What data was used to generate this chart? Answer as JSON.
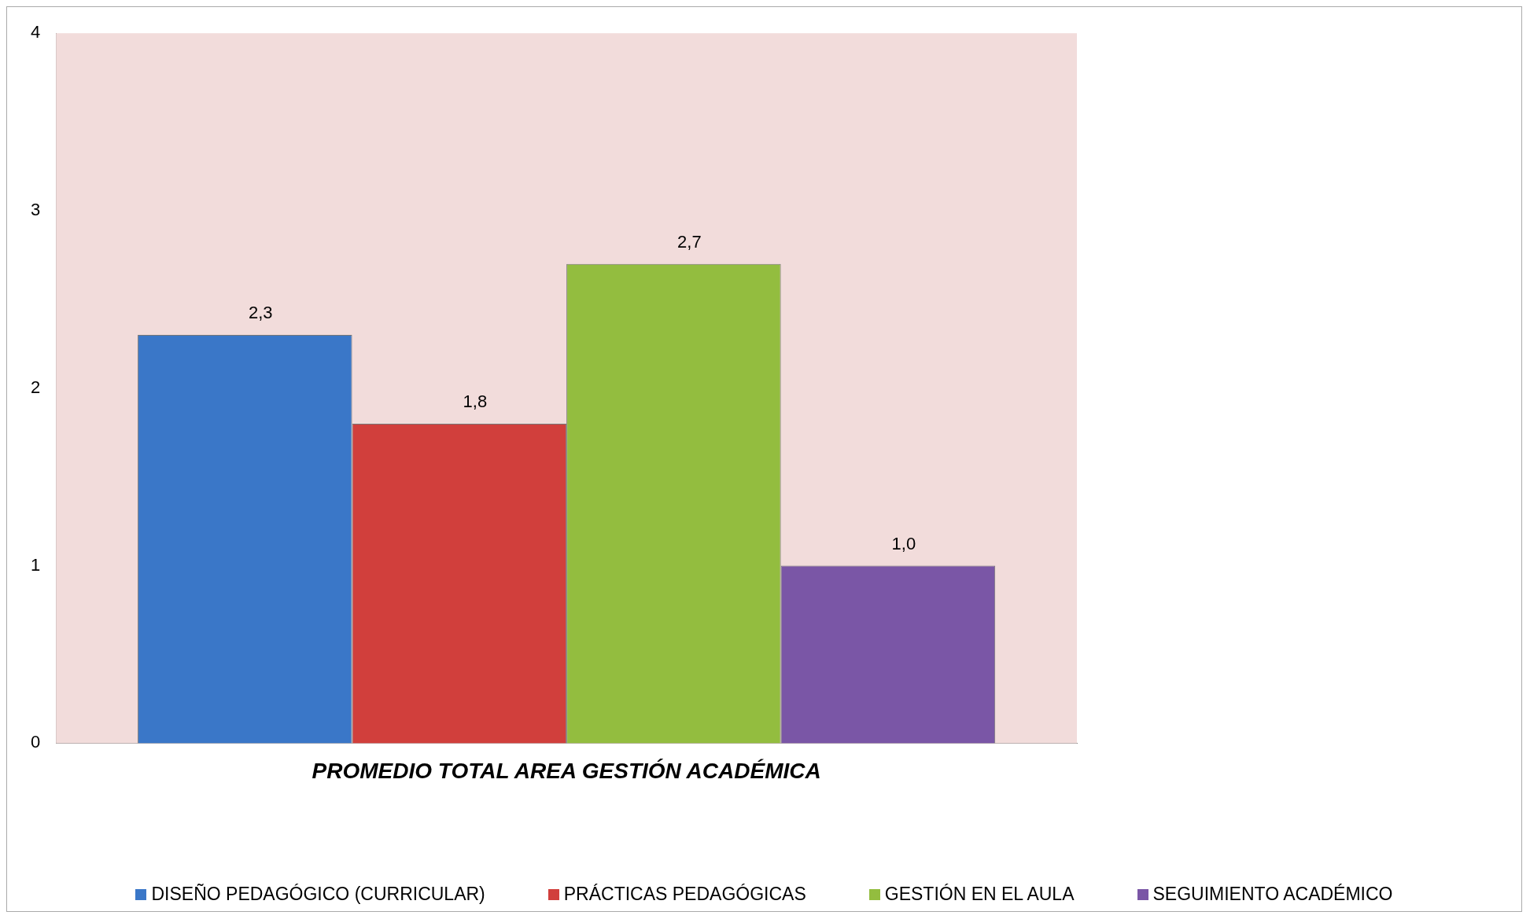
{
  "chart_data": {
    "type": "bar",
    "categories": [
      "PROMEDIO TOTAL AREA GESTIÓN ACADÉMICA"
    ],
    "series": [
      {
        "name": "DISEÑO PEDAGÓGICO (CURRICULAR)",
        "color": "#3a77c8",
        "values": [
          2.3
        ],
        "value_labels": [
          "2,3"
        ]
      },
      {
        "name": "PRÁCTICAS PEDAGÓGICAS",
        "color": "#d13f3c",
        "values": [
          1.8
        ],
        "value_labels": [
          "1,8"
        ]
      },
      {
        "name": "GESTIÓN EN EL AULA",
        "color": "#93bd3f",
        "values": [
          2.7
        ],
        "value_labels": [
          "2,7"
        ]
      },
      {
        "name": "SEGUIMIENTO ACADÉMICO",
        "color": "#7a56a6",
        "values": [
          1.0
        ],
        "value_labels": [
          "1,0"
        ]
      }
    ],
    "ylim": [
      0,
      4
    ],
    "yticks": [
      0,
      1,
      2,
      3,
      4
    ],
    "grid": false,
    "legend": "bottom"
  }
}
